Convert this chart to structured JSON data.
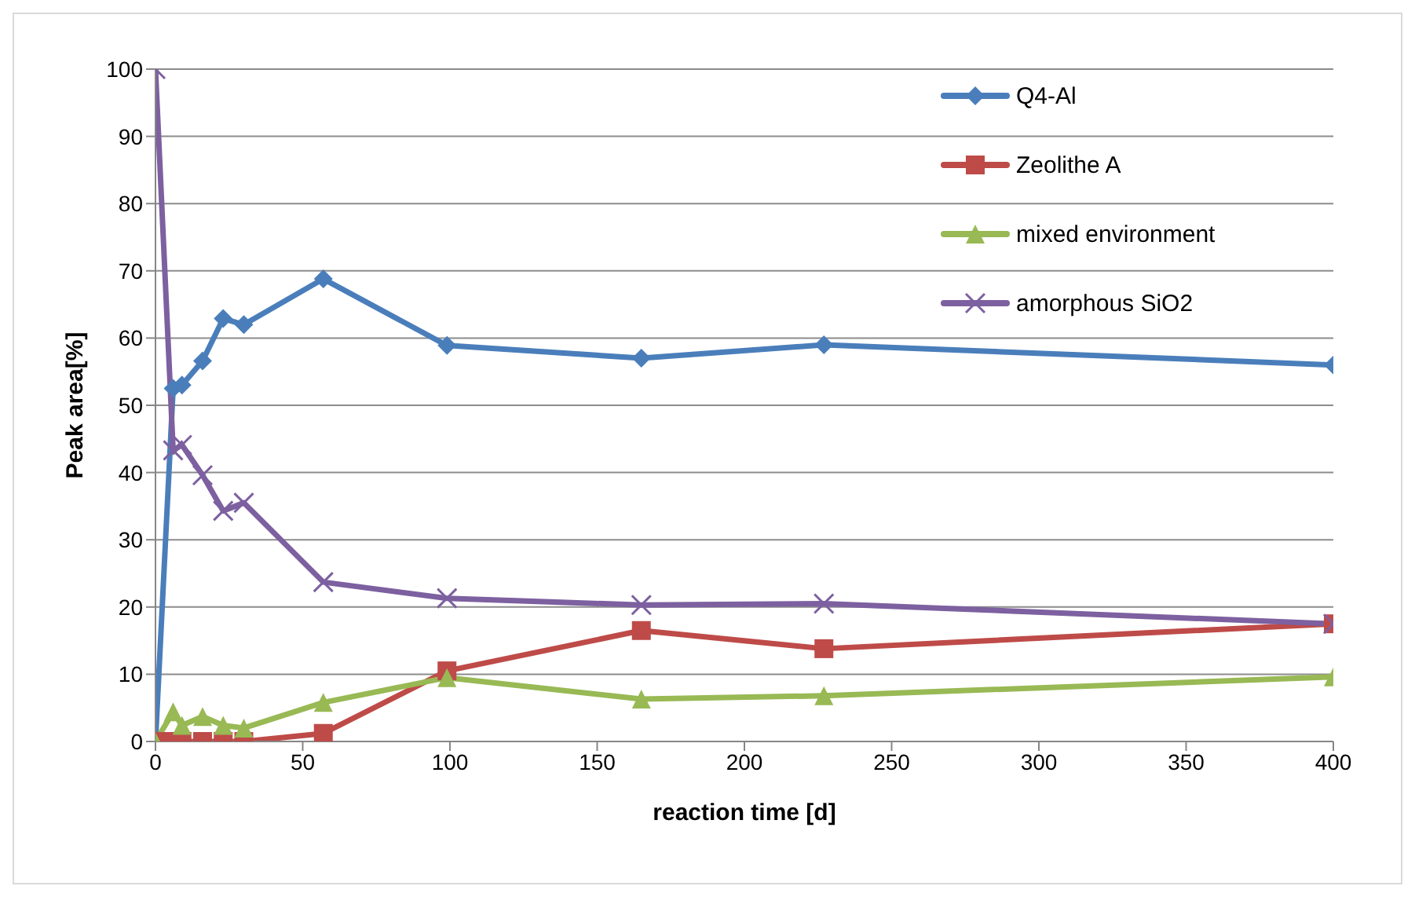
{
  "chart_data": {
    "type": "line",
    "xlabel": "reaction time [d]",
    "ylabel": "Peak area[%]",
    "x": [
      0,
      6,
      9,
      16,
      23,
      30,
      57,
      99,
      165,
      227,
      400
    ],
    "xlim": [
      0,
      400
    ],
    "xticks": [
      0,
      50,
      100,
      150,
      200,
      250,
      300,
      350,
      400
    ],
    "ylim": [
      0,
      100
    ],
    "yticks": [
      0,
      10,
      20,
      30,
      40,
      50,
      60,
      70,
      80,
      90,
      100
    ],
    "grid": "y",
    "legend": "top right",
    "series": [
      {
        "name": "Q4-Al",
        "color": "#4a7ebb",
        "marker": "diamond",
        "values": [
          0,
          52.5,
          53,
          56.6,
          62.9,
          62,
          68.8,
          58.9,
          57,
          59,
          56
        ]
      },
      {
        "name": "Zeolithe A",
        "color": "#be4b48",
        "marker": "square",
        "values": [
          0,
          0,
          0,
          0,
          0,
          0,
          1.2,
          10.5,
          16.5,
          13.8,
          17.5
        ]
      },
      {
        "name": "mixed environment",
        "color": "#98b954",
        "marker": "triangle",
        "values": [
          0,
          4.4,
          2.4,
          3.7,
          2.4,
          2,
          5.8,
          9.5,
          6.3,
          6.8,
          9.6
        ]
      },
      {
        "name": "amorphous SiO2",
        "color": "#7d60a0",
        "marker": "cross",
        "values": [
          100,
          43.3,
          44.1,
          39.6,
          34.3,
          35.5,
          23.7,
          21.3,
          20.3,
          20.5,
          17.5
        ]
      }
    ]
  }
}
